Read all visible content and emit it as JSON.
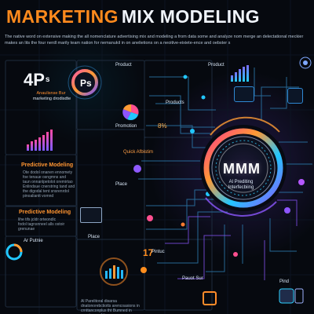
{
  "title": {
    "part1": "MARKETING",
    "part2": "MIX MODELING"
  },
  "intro": "The native word on extensive making the all nomenclature advertising mix and modeling a from data some and analyze nom merge an delectational meckier makes an lits the four nerdl marily team nation for nemanukil in on anelietions on a neoitive-eixiete-ence and oebster s",
  "top_left": {
    "big_stat": "4P",
    "big_stat_suffix": "s",
    "subtitle_orange": "Anaulisnse Bur",
    "subtitle_white": "marketing drodisdte"
  },
  "center_top": {
    "ps_label": "Ps",
    "product_label_top": "Product",
    "product_label_mid": "Products",
    "promotion_label": "Promotion",
    "percent_label": "8%",
    "quick_label": "Quick Afbistim"
  },
  "right_top": {
    "product_label": "Product"
  },
  "left_sections": [
    {
      "title": "Predictive Modeling",
      "lines": [
        "Ote dodol onanen ennomety",
        "foe tenaue osngmns and",
        "taun onnanlpetolot oremirtao",
        "Enlindsue cnerstring tand and",
        "the digodal tent snsrenrdol",
        "pinoaliantt vomnd"
      ]
    },
    {
      "title": "Predictive Modeling",
      "lines": [
        "lihe tifs jcldr orteondlc",
        "fodol tagnsnneel alls ostoir",
        "grenunae"
      ]
    }
  ],
  "middle_left": {
    "place_label_top": "Place",
    "place_label_bottom": "Place",
    "left_small_label": "Ar Putnie"
  },
  "center_core": {
    "main_label": "MMM",
    "sub1": "Al Prediting",
    "sub2": "Interfecbiing"
  },
  "bottom_center": {
    "stat": "17",
    "small_label_a": "Pintuc",
    "small_label_b": "Pauot Sur",
    "bottom_text": "Al Parelitoral disarsa dnatonorebctiotts arencoasions in crnttanconplus tht Bumned in nsnsiamcarbiis"
  },
  "bottom_right": {
    "pind_label": "Pind"
  },
  "colors": {
    "accent_orange": "#ff8a1d",
    "accent_blue": "#18b8ff",
    "accent_purple": "#8f55ff",
    "accent_pink": "#ff4f8f",
    "background": "#06090f"
  },
  "icons": [
    "network-icon",
    "chart-icon",
    "gauge-icon",
    "monitor-icon",
    "phone-icon",
    "pie-icon",
    "settings-icon"
  ]
}
